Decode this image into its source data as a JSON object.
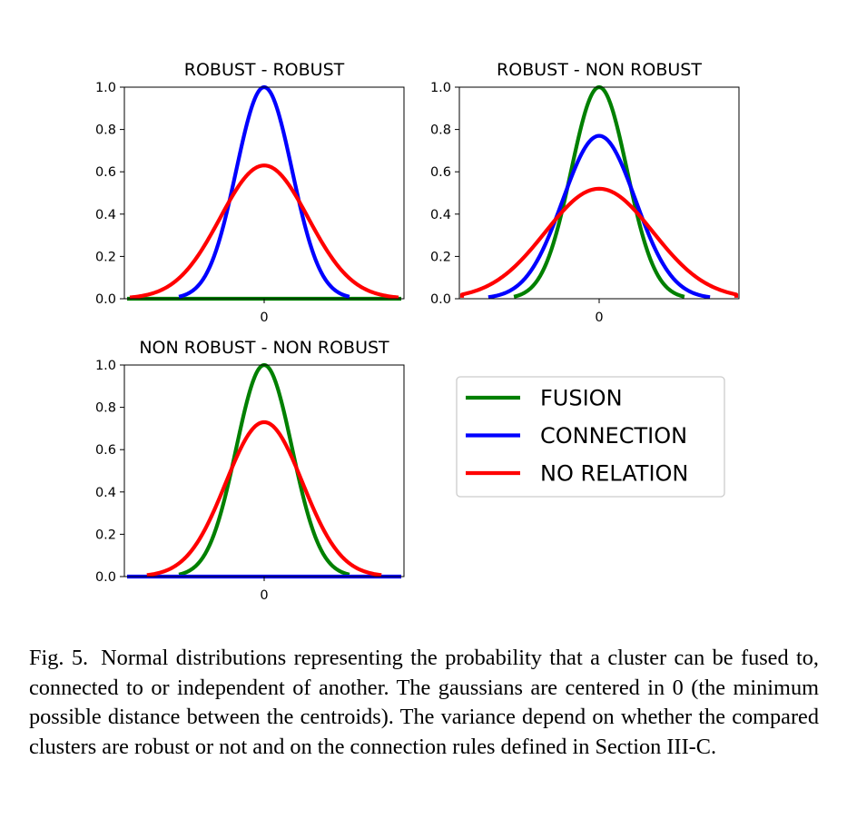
{
  "colors": {
    "fusion": "#008000",
    "connection": "#0000ff",
    "no_relation": "#ff0000"
  },
  "chart_data": [
    {
      "type": "line",
      "title": "ROBUST - ROBUST",
      "ylim": [
        0,
        1.0
      ],
      "yticks": [
        "0.0",
        "0.2",
        "0.4",
        "0.6",
        "0.8",
        "1.0"
      ],
      "xticks": [
        "0"
      ],
      "series": [
        {
          "name": "FUSION",
          "peak": 0.0,
          "sigma": 0.0
        },
        {
          "name": "CONNECTION",
          "peak": 1.0,
          "sigma": 0.4
        },
        {
          "name": "NO RELATION",
          "peak": 0.63,
          "sigma": 0.63
        }
      ]
    },
    {
      "type": "line",
      "title": "ROBUST - NON ROBUST",
      "ylim": [
        0,
        1.0
      ],
      "yticks": [
        "0.0",
        "0.2",
        "0.4",
        "0.6",
        "0.8",
        "1.0"
      ],
      "xticks": [
        "0"
      ],
      "series": [
        {
          "name": "FUSION",
          "peak": 1.0,
          "sigma": 0.4
        },
        {
          "name": "CONNECTION",
          "peak": 0.77,
          "sigma": 0.52
        },
        {
          "name": "NO RELATION",
          "peak": 0.52,
          "sigma": 0.77
        }
      ]
    },
    {
      "type": "line",
      "title": "NON ROBUST - NON ROBUST",
      "ylim": [
        0,
        1.0
      ],
      "yticks": [
        "0.0",
        "0.2",
        "0.4",
        "0.6",
        "0.8",
        "1.0"
      ],
      "xticks": [
        "0"
      ],
      "series": [
        {
          "name": "FUSION",
          "peak": 1.0,
          "sigma": 0.4
        },
        {
          "name": "CONNECTION",
          "peak": 0.0,
          "sigma": 0.0
        },
        {
          "name": "NO RELATION",
          "peak": 0.73,
          "sigma": 0.55
        }
      ]
    }
  ],
  "legend": {
    "items": [
      {
        "label": "FUSION",
        "color": "#008000"
      },
      {
        "label": "CONNECTION",
        "color": "#0000ff"
      },
      {
        "label": "NO RELATION",
        "color": "#ff0000"
      }
    ]
  },
  "caption": {
    "label": "Fig. 5.",
    "text": "Normal distributions representing the probability that a cluster can be fused to, connected to or independent of another. The gaussians are centered in 0 (the minimum possible distance between the centroids). The variance depend on whether the compared clusters are robust or not and on the connection rules defined in Section III-C."
  }
}
